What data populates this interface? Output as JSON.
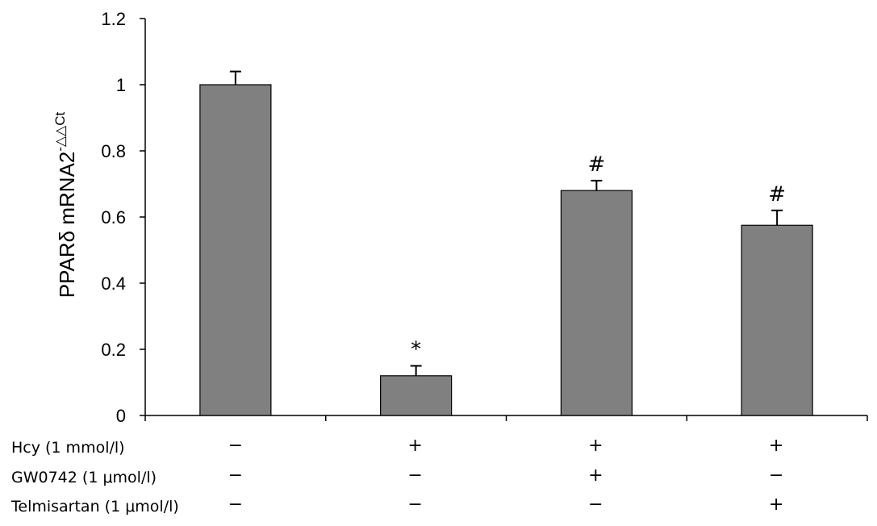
{
  "chart_data": {
    "type": "bar",
    "ylabel": "PPARδ mRNA2",
    "ylabel_superscript": "-△△Ct",
    "ylim": [
      0,
      1.2
    ],
    "yticks": [
      "0",
      "0.2",
      "0.4",
      "0.6",
      "0.8",
      "1",
      "1.2"
    ],
    "grid": false,
    "bar_color": "#808080",
    "values": [
      1.0,
      0.12,
      0.68,
      0.575
    ],
    "errors": [
      0.04,
      0.03,
      0.03,
      0.045
    ],
    "annotations": [
      "",
      "*",
      "#",
      "#"
    ],
    "conditions": [
      {
        "label": "Hcy (1 mmol/l)",
        "signs": [
          "−",
          "+",
          "+",
          "+"
        ]
      },
      {
        "label": "GW0742 (1 μmol/l)",
        "signs": [
          "−",
          "−",
          "+",
          "−"
        ]
      },
      {
        "label": "Telmisartan (1 μmol/l)",
        "signs": [
          "−",
          "−",
          "−",
          "+"
        ]
      }
    ]
  }
}
